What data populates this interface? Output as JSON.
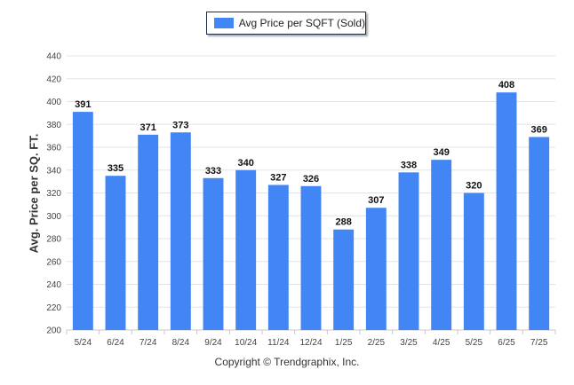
{
  "chart_data": {
    "type": "bar",
    "categories": [
      "5/24",
      "6/24",
      "7/24",
      "8/24",
      "9/24",
      "10/24",
      "11/24",
      "12/24",
      "1/25",
      "2/25",
      "3/25",
      "4/25",
      "5/25",
      "6/25",
      "7/25"
    ],
    "series": [
      {
        "name": "Avg Price per SQFT (Sold)",
        "values": [
          391,
          335,
          371,
          373,
          333,
          340,
          327,
          326,
          288,
          307,
          338,
          349,
          320,
          408,
          369
        ]
      }
    ],
    "ylabel": "Avg. Price per SQ. FT.",
    "xlabel": "",
    "ylim": [
      200,
      440
    ],
    "yticks": [
      200,
      220,
      240,
      260,
      280,
      300,
      320,
      340,
      360,
      380,
      400,
      420,
      440
    ],
    "grid": true,
    "legend_position": "top-center",
    "data_labels": true,
    "bar_color": "#4285f4"
  },
  "footer": {
    "copyright": "Copyright © Trendgraphix, Inc."
  }
}
